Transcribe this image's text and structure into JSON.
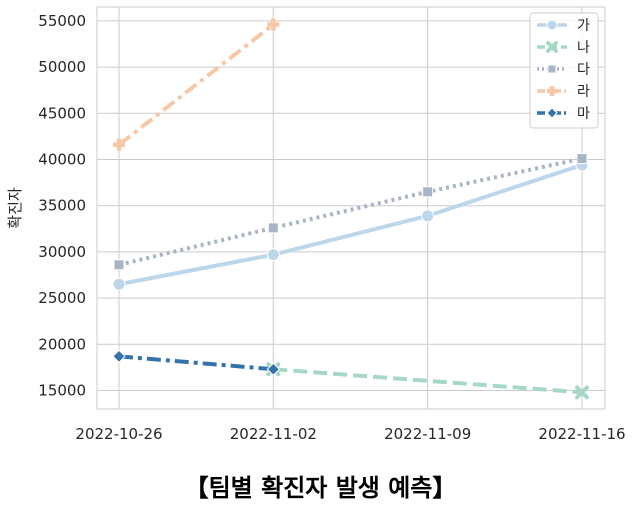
{
  "caption": "【팀별 확진자 발생 예측】",
  "chart_data": {
    "type": "line",
    "title": "",
    "xlabel": "",
    "ylabel": "확진자",
    "x_ticks": [
      "2022-10-26",
      "2022-11-02",
      "2022-11-09",
      "2022-11-16"
    ],
    "y_ticks": [
      15000,
      20000,
      25000,
      30000,
      35000,
      40000,
      45000,
      50000,
      55000
    ],
    "ylim": [
      13000,
      56500
    ],
    "grid": true,
    "legend_position": "top-right",
    "series": [
      {
        "name": "가",
        "color": "#bcd6ea",
        "dash": "solid",
        "marker": "circle",
        "points": [
          {
            "x": "2022-10-26",
            "y": 26500
          },
          {
            "x": "2022-11-02",
            "y": 29700
          },
          {
            "x": "2022-11-09",
            "y": 33900
          },
          {
            "x": "2022-11-16",
            "y": 39400
          }
        ]
      },
      {
        "name": "나",
        "color": "#a6d8c4",
        "dash": "dashed",
        "marker": "x",
        "points": [
          {
            "x": "2022-11-02",
            "y": 17300
          },
          {
            "x": "2022-11-16",
            "y": 14800
          }
        ]
      },
      {
        "name": "다",
        "color": "#a9b4c6",
        "dash": "dotted",
        "marker": "square",
        "points": [
          {
            "x": "2022-10-26",
            "y": 28600
          },
          {
            "x": "2022-11-02",
            "y": 32600
          },
          {
            "x": "2022-11-09",
            "y": 36500
          },
          {
            "x": "2022-11-16",
            "y": 40100
          }
        ]
      },
      {
        "name": "라",
        "color": "#f6c8a6",
        "dash": "dashdot",
        "marker": "plus",
        "points": [
          {
            "x": "2022-10-26",
            "y": 41600
          },
          {
            "x": "2022-11-02",
            "y": 54600
          }
        ]
      },
      {
        "name": "마",
        "color": "#3473aa",
        "dash": "dashdot",
        "marker": "diamond",
        "points": [
          {
            "x": "2022-10-26",
            "y": 18700
          },
          {
            "x": "2022-11-02",
            "y": 17300
          }
        ]
      }
    ]
  }
}
